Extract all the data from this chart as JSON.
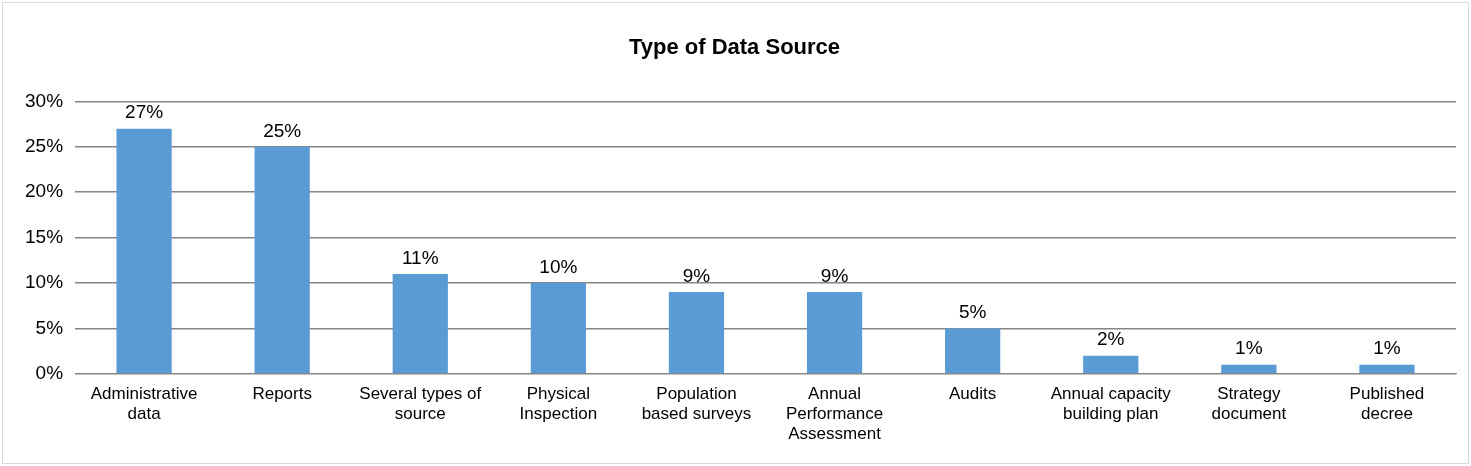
{
  "chart_data": {
    "type": "bar",
    "title": "Type of Data Source",
    "categories": [
      "Administrative data",
      "Reports",
      "Several types of source",
      "Physical Inspection",
      "Population based surveys",
      "Annual Performance Assessment",
      "Audits",
      "Annual capacity building plan",
      "Strategy document",
      "Published decree"
    ],
    "values": [
      27,
      25,
      11,
      10,
      9,
      9,
      5,
      2,
      1,
      1
    ],
    "value_labels": [
      "27%",
      "25%",
      "11%",
      "10%",
      "9%",
      "9%",
      "5%",
      "2%",
      "1%",
      "1%"
    ],
    "color": "#5b9bd5",
    "ylim": [
      0,
      30
    ],
    "yticks": [
      {
        "value": 0,
        "label": "0%"
      },
      {
        "value": 5,
        "label": "5%"
      },
      {
        "value": 10,
        "label": "10%"
      },
      {
        "value": 15,
        "label": "15%"
      },
      {
        "value": 20,
        "label": "20%"
      },
      {
        "value": 25,
        "label": "25%"
      },
      {
        "value": 30,
        "label": "30%"
      }
    ],
    "grid": "y",
    "legend": false
  }
}
